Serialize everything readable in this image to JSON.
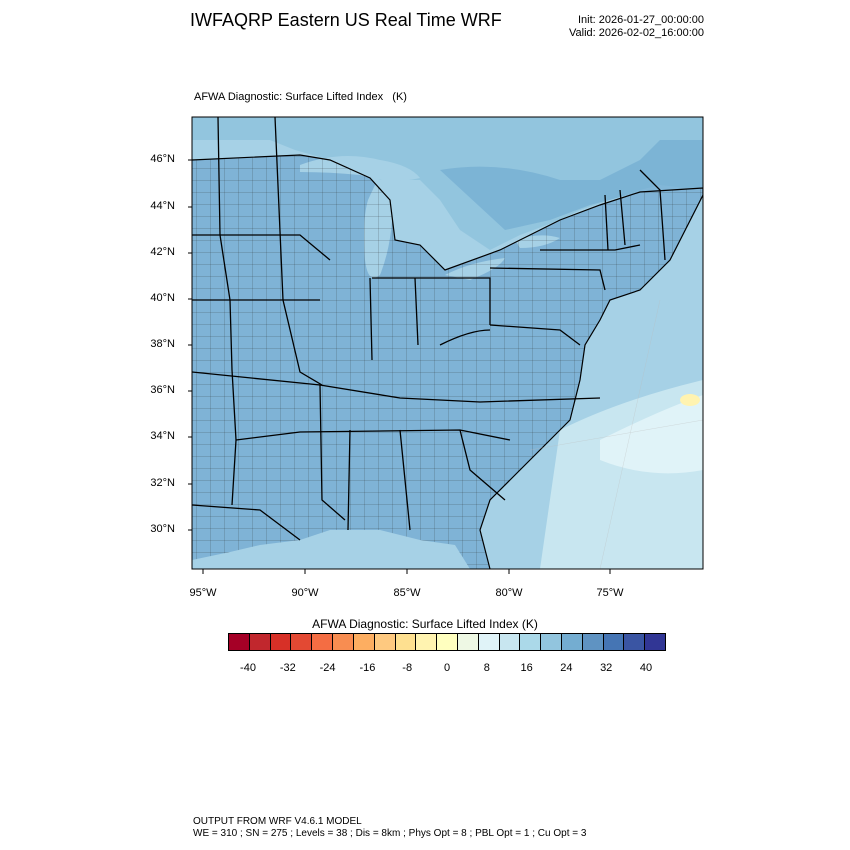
{
  "header": {
    "title": "IWFAQRP Eastern US Real Time WRF",
    "init": "Init: 2026-01-27_00:00:00",
    "valid": "Valid: 2026-02-02_16:00:00"
  },
  "plot": {
    "label": "AFWA Diagnostic: Surface Lifted Index   (K)",
    "lat_labels": [
      "46°N",
      "44°N",
      "42°N",
      "40°N",
      "38°N",
      "36°N",
      "34°N",
      "32°N",
      "30°N"
    ],
    "lon_labels": [
      "95°W",
      "90°W",
      "85°W",
      "80°W",
      "75°W"
    ],
    "ocean_color": "#a6d1e6",
    "land_color": "#7fb3d6"
  },
  "colorbar": {
    "title": "AFWA Diagnostic: Surface Lifted Index  (K)",
    "colors": [
      "#a50026",
      "#c1272d",
      "#d73027",
      "#e34933",
      "#f46d43",
      "#f88d51",
      "#fdae61",
      "#fec980",
      "#fee090",
      "#fff3b0",
      "#ffffbf",
      "#eef8e4",
      "#e0f3f8",
      "#c8e6f0",
      "#abd9e9",
      "#92c5de",
      "#74add1",
      "#5f93c2",
      "#4575b4",
      "#3a55a3",
      "#313695"
    ],
    "ticks": [
      "-40",
      "-32",
      "-24",
      "-16",
      "-8",
      "0",
      "8",
      "16",
      "24",
      "32",
      "40"
    ]
  },
  "footer": {
    "line1": "OUTPUT FROM WRF V4.6.1 MODEL",
    "line2": "WE = 310 ; SN = 275 ; Levels = 38 ; Dis = 8km ; Phys Opt = 8 ; PBL Opt = 1 ; Cu Opt = 3"
  }
}
